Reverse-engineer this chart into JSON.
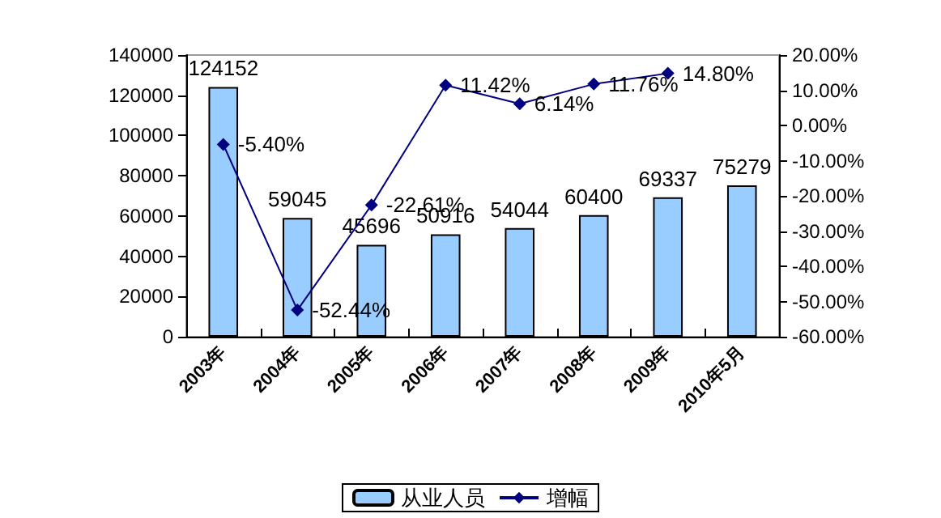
{
  "chart_data": {
    "type": "bar",
    "categories": [
      "2003年",
      "2004年",
      "2005年",
      "2006年",
      "2007年",
      "2008年",
      "2009年",
      "2010年5月"
    ],
    "series": [
      {
        "name": "从业人员",
        "color": "#99ccff",
        "values": [
          124152,
          59045,
          45696,
          50916,
          54044,
          60400,
          69337,
          75279
        ],
        "value_labels": [
          "124152",
          "59045",
          "45696",
          "50916",
          "54044",
          "60400",
          "69337",
          "75279"
        ]
      },
      {
        "name": "增幅",
        "type": "line",
        "axis": "y2",
        "color": "#000080",
        "marker": "diamond",
        "values": [
          -5.4,
          -52.44,
          -22.61,
          11.42,
          6.14,
          11.76,
          14.8,
          null
        ],
        "value_labels": [
          "-5.40%",
          "-52.44%",
          "-22.61%",
          "11.42%",
          "6.14%",
          "11.76%",
          "14.80%",
          null
        ]
      }
    ],
    "ylim": [
      0,
      140000
    ],
    "yticks": [
      0,
      20000,
      40000,
      60000,
      80000,
      100000,
      120000,
      140000
    ],
    "y2lim": [
      -60,
      20
    ],
    "y2ticks": [
      {
        "value": -60,
        "label": "-60.00%"
      },
      {
        "value": -50,
        "label": "-50.00%"
      },
      {
        "value": -40,
        "label": "-40.00%"
      },
      {
        "value": -30,
        "label": "-30.00%"
      },
      {
        "value": -20,
        "label": "-20.00%"
      },
      {
        "value": -10,
        "label": "-10.00%"
      },
      {
        "value": 0,
        "label": "0.00%"
      },
      {
        "value": 10,
        "label": "10.00%"
      },
      {
        "value": 20,
        "label": "20.00%"
      }
    ],
    "grid": false,
    "legend": "bottom"
  }
}
